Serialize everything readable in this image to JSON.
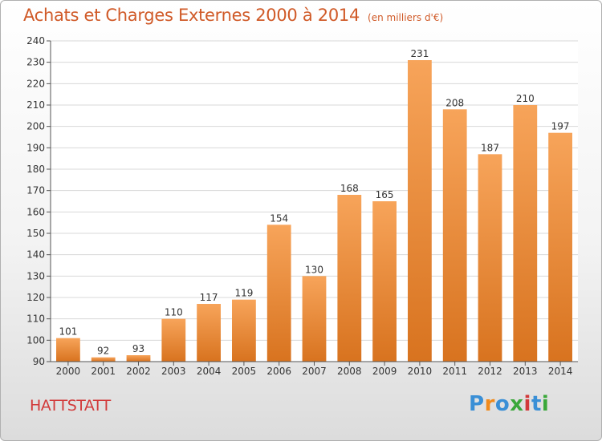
{
  "header": {
    "title": "Achats et Charges Externes 2000 à 2014",
    "unit": "(en milliers d'€)"
  },
  "footer": {
    "city": "HATTSTATT",
    "logo": {
      "letters": [
        "P",
        "r",
        "o",
        "x",
        "i",
        "t",
        "i"
      ],
      "colors": [
        "#3a8fd6",
        "#f08a1c",
        "#3a8fd6",
        "#3aa83a",
        "#d23a3a",
        "#3a8fd6",
        "#3aa83a"
      ]
    }
  },
  "chart_data": {
    "type": "bar",
    "categories": [
      "2000",
      "2001",
      "2002",
      "2003",
      "2004",
      "2005",
      "2006",
      "2007",
      "2008",
      "2009",
      "2010",
      "2011",
      "2012",
      "2013",
      "2014"
    ],
    "values": [
      101,
      92,
      93,
      110,
      117,
      119,
      154,
      130,
      168,
      165,
      231,
      208,
      187,
      210,
      197
    ],
    "title": "Achats et Charges Externes 2000 à 2014",
    "ylim": [
      90,
      240
    ],
    "yticks": [
      90,
      100,
      110,
      120,
      130,
      140,
      150,
      160,
      170,
      180,
      190,
      200,
      210,
      220,
      230,
      240
    ],
    "grid": true,
    "bar_color_top": "#f7a45a",
    "bar_color_bottom": "#d8731f",
    "grid_color": "#d8d8d8",
    "axis_color": "#555555"
  }
}
